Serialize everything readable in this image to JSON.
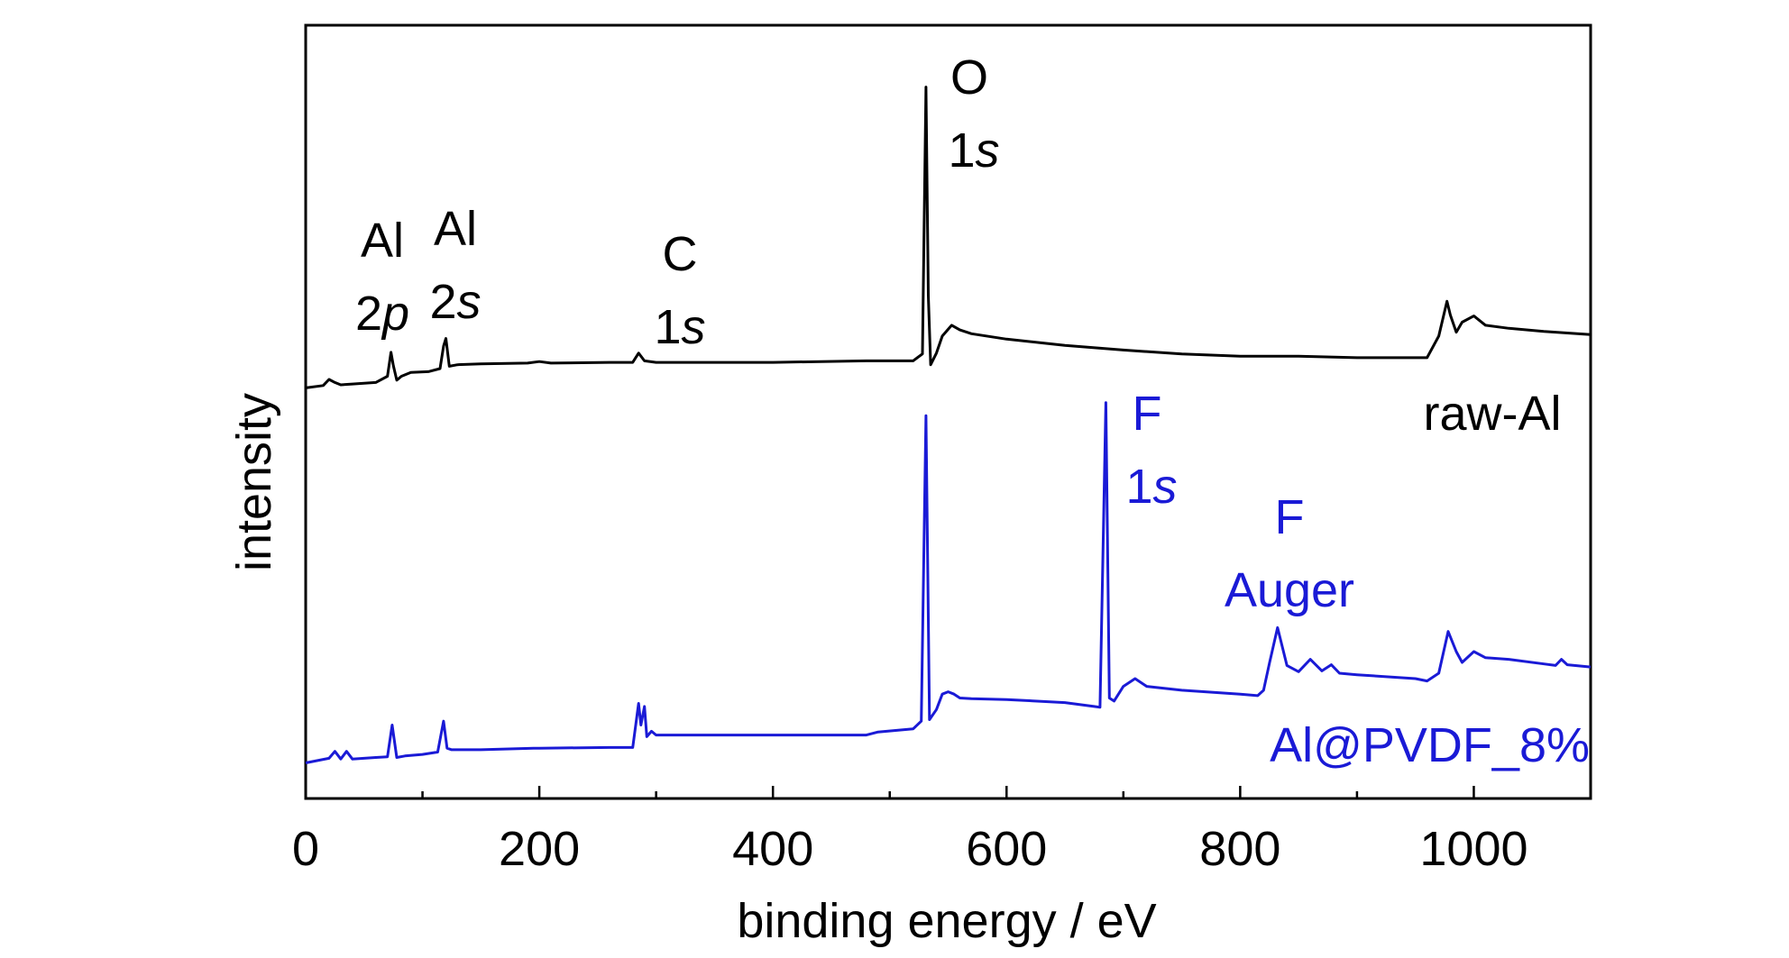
{
  "chart_data": {
    "type": "line",
    "xlabel": "binding energy / eV",
    "ylabel": "intensity",
    "xlim": [
      0,
      1100
    ],
    "x_ticks": [
      0,
      200,
      400,
      600,
      800,
      1000
    ],
    "x_tick_labels": [
      "0",
      "200",
      "400",
      "600",
      "800",
      "1000"
    ],
    "x_minor_step": 100,
    "ylim": [
      0,
      100
    ],
    "y_ticks_shown": false,
    "grid": false,
    "colors": {
      "raw_al": "#000000",
      "al_pvdf": "#1a1ad6"
    },
    "series": [
      {
        "name": "raw-Al",
        "color": "#000000",
        "x": [
          0,
          15,
          20,
          25,
          30,
          40,
          60,
          70,
          73,
          75,
          78,
          82,
          90,
          105,
          115,
          118,
          120,
          123,
          130,
          150,
          190,
          200,
          210,
          260,
          280,
          285,
          290,
          300,
          400,
          480,
          520,
          528,
          531,
          533,
          535,
          540,
          545,
          553,
          560,
          570,
          600,
          650,
          700,
          750,
          800,
          850,
          900,
          940,
          960,
          970,
          977,
          980,
          985,
          990,
          1000,
          1010,
          1030,
          1060,
          1100
        ],
        "y": [
          53.1,
          53.4,
          54.2,
          53.8,
          53.5,
          53.6,
          53.8,
          54.6,
          57.7,
          56.0,
          54.1,
          54.6,
          55.1,
          55.2,
          55.6,
          58.5,
          59.5,
          55.9,
          56.1,
          56.2,
          56.3,
          56.5,
          56.3,
          56.4,
          56.4,
          57.6,
          56.6,
          56.4,
          56.4,
          56.6,
          56.6,
          57.5,
          92.0,
          65.0,
          56.1,
          57.6,
          59.8,
          61.2,
          60.6,
          60.1,
          59.4,
          58.6,
          58.0,
          57.5,
          57.2,
          57.2,
          57.0,
          57.0,
          57.0,
          59.8,
          64.3,
          62.5,
          60.3,
          61.6,
          62.4,
          61.2,
          60.8,
          60.4,
          60.0
        ]
      },
      {
        "name": "Al@PVDF_8%",
        "color": "#1a1ad6",
        "x": [
          0,
          20,
          25,
          30,
          35,
          40,
          60,
          70,
          74,
          78,
          85,
          100,
          113,
          118,
          121,
          125,
          150,
          195,
          200,
          260,
          280,
          285,
          287,
          290,
          292,
          296,
          300,
          400,
          480,
          490,
          520,
          527,
          531,
          534,
          540,
          545,
          550,
          555,
          560,
          570,
          600,
          650,
          675,
          680,
          685,
          688,
          692,
          700,
          710,
          720,
          750,
          800,
          815,
          820,
          825,
          832,
          840,
          850,
          860,
          870,
          878,
          885,
          900,
          950,
          960,
          970,
          978,
          985,
          990,
          1000,
          1010,
          1030,
          1060,
          1070,
          1075,
          1080,
          1100
        ],
        "y": [
          4.6,
          5.2,
          6.1,
          5.1,
          6.1,
          5.1,
          5.3,
          5.4,
          9.5,
          5.3,
          5.5,
          5.7,
          6.0,
          10.0,
          6.5,
          6.3,
          6.3,
          6.5,
          6.5,
          6.6,
          6.6,
          12.3,
          9.5,
          11.9,
          8.0,
          8.7,
          8.2,
          8.2,
          8.2,
          8.6,
          9.0,
          10.0,
          49.5,
          10.2,
          11.5,
          13.5,
          13.8,
          13.5,
          13.0,
          12.9,
          12.8,
          12.4,
          11.9,
          11.8,
          51.2,
          13.0,
          12.6,
          14.5,
          15.5,
          14.5,
          14.0,
          13.5,
          13.3,
          14.0,
          17.5,
          22.1,
          17.2,
          16.4,
          18.0,
          16.5,
          17.3,
          16.2,
          16.0,
          15.5,
          15.2,
          16.2,
          21.6,
          19.0,
          17.6,
          19.0,
          18.2,
          18.0,
          17.4,
          17.2,
          18.0,
          17.3,
          17.0
        ]
      }
    ],
    "annotations": [
      {
        "lines": [
          "Al",
          "2p"
        ],
        "italic_part": "p",
        "color": "#000000"
      },
      {
        "lines": [
          "Al",
          "2s"
        ],
        "italic_part": "s",
        "color": "#000000"
      },
      {
        "lines": [
          "C",
          "1s"
        ],
        "italic_part": "s",
        "color": "#000000"
      },
      {
        "lines": [
          "O",
          "1s"
        ],
        "italic_part": "s",
        "color": "#000000"
      },
      {
        "lines": [
          "raw-Al"
        ],
        "color": "#000000"
      },
      {
        "lines": [
          "F",
          "1s"
        ],
        "italic_part": "s",
        "color": "#1a1ad6"
      },
      {
        "lines": [
          "F",
          "Auger"
        ],
        "color": "#1a1ad6"
      },
      {
        "lines": [
          "Al@PVDF_8%"
        ],
        "color": "#1a1ad6"
      }
    ]
  }
}
